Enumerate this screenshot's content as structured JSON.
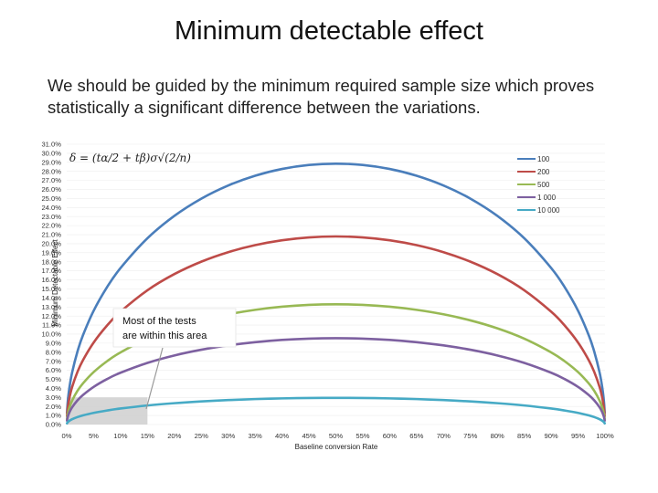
{
  "slide": {
    "title": "Minimum detectable effect",
    "subtitle_line1": "We should be guided by the minimum required sample size which proves",
    "subtitle_line2": "statistically a significant difference between the variations."
  },
  "chart_data": {
    "type": "line",
    "title": "",
    "xlabel": "Baseline conversion Rate",
    "ylabel": "Minimum Detectable Effect",
    "xlim": [
      0,
      1
    ],
    "ylim": [
      0,
      0.31
    ],
    "x_ticks": [
      "0%",
      "5%",
      "10%",
      "15%",
      "20%",
      "25%",
      "30%",
      "35%",
      "40%",
      "45%",
      "50%",
      "55%",
      "60%",
      "65%",
      "70%",
      "75%",
      "80%",
      "85%",
      "90%",
      "95%",
      "100%"
    ],
    "y_ticks": [
      "0.0%",
      "1.0%",
      "2.0%",
      "3.0%",
      "4.0%",
      "5.0%",
      "6.0%",
      "7.0%",
      "8.0%",
      "9.0%",
      "10.0%",
      "11.0%",
      "12.0%",
      "13.0%",
      "14.0%",
      "15.0%",
      "16.0%",
      "17.0%",
      "18.0%",
      "19.0%",
      "20.0%",
      "21.0%",
      "22.0%",
      "23.0%",
      "24.0%",
      "25.0%",
      "26.0%",
      "27.0%",
      "28.0%",
      "29.0%",
      "30.0%",
      "31.0%"
    ],
    "x": [
      0.0005,
      0.002,
      0.005,
      0.01,
      0.02,
      0.03,
      0.05,
      0.075,
      0.1,
      0.15,
      0.2,
      0.25,
      0.3,
      0.35,
      0.4,
      0.45,
      0.5,
      0.55,
      0.6,
      0.65,
      0.7,
      0.75,
      0.8,
      0.85,
      0.9,
      0.925,
      0.95,
      0.97,
      0.98,
      0.99,
      0.995,
      0.998,
      0.9995
    ],
    "series": [
      {
        "name": "100",
        "peak": 0.2885,
        "color": "#4a7ebb"
      },
      {
        "name": "200",
        "peak": 0.208,
        "color": "#be4b48"
      },
      {
        "name": "500",
        "peak": 0.133,
        "color": "#98b954"
      },
      {
        "name": "1 000",
        "peak": 0.0955,
        "color": "#7d60a0"
      },
      {
        "name": "10 000",
        "peak": 0.0295,
        "color": "#46aac5"
      }
    ],
    "legend_position": "top-right",
    "formula": "δ = (tα/2 + tβ)σ√(2/n)",
    "annotation_line1": "Most of the tests",
    "annotation_line2": "are within this area"
  }
}
